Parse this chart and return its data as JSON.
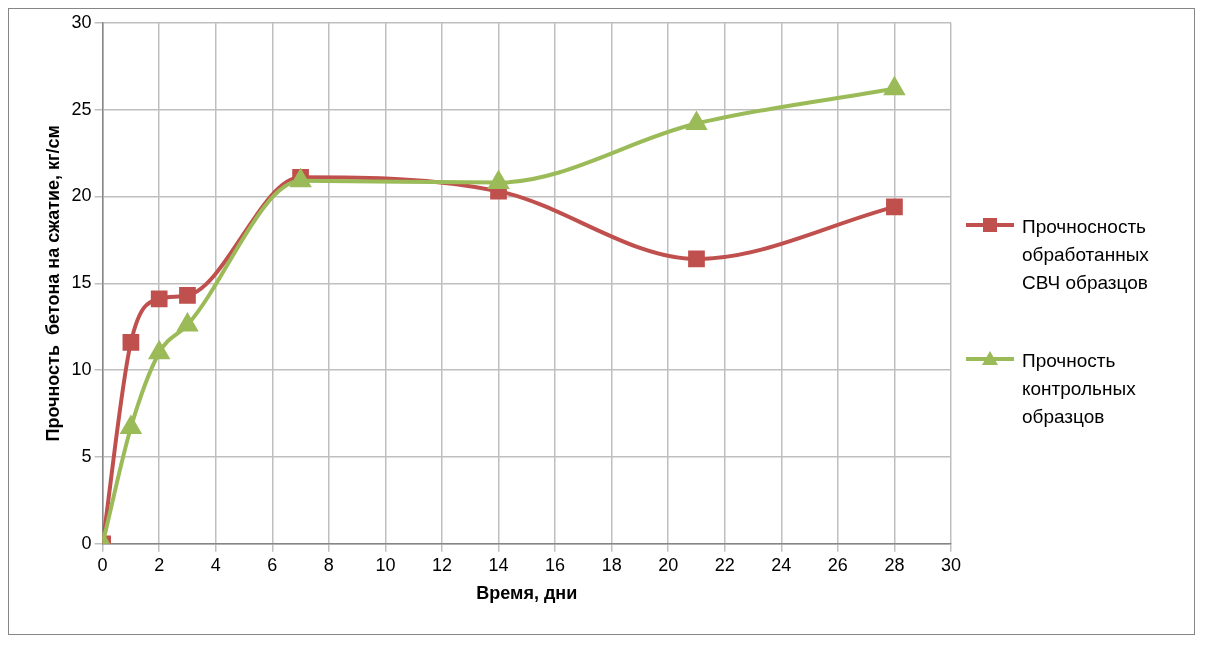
{
  "chart_data": {
    "type": "line",
    "xlabel": "Время, дни",
    "ylabel": "Прочность  бетона на сжатие, кг/см",
    "xlim": [
      0,
      30
    ],
    "xticks": [
      0,
      2,
      4,
      6,
      8,
      10,
      12,
      14,
      16,
      18,
      20,
      22,
      24,
      26,
      28,
      30
    ],
    "ylim": [
      0,
      30
    ],
    "yticks": [
      0,
      5,
      10,
      15,
      20,
      25,
      30
    ],
    "grid": true,
    "legend": "right",
    "series": [
      {
        "name": "Прочносность обработанных СВЧ образцов",
        "color": "#c0504d",
        "marker": "square",
        "x": [
          0,
          1,
          2,
          3,
          7,
          14,
          21,
          28
        ],
        "values": [
          0,
          11.6,
          14.1,
          14.3,
          21.1,
          20.3,
          16.4,
          19.4
        ]
      },
      {
        "name": "Прочность контрольных образцов",
        "color": "#9bbb59",
        "marker": "triangle",
        "x": [
          0,
          1,
          2,
          3,
          7,
          14,
          21,
          28
        ],
        "values": [
          0,
          6.7,
          11.0,
          12.6,
          20.9,
          20.8,
          24.2,
          26.2
        ]
      }
    ]
  }
}
